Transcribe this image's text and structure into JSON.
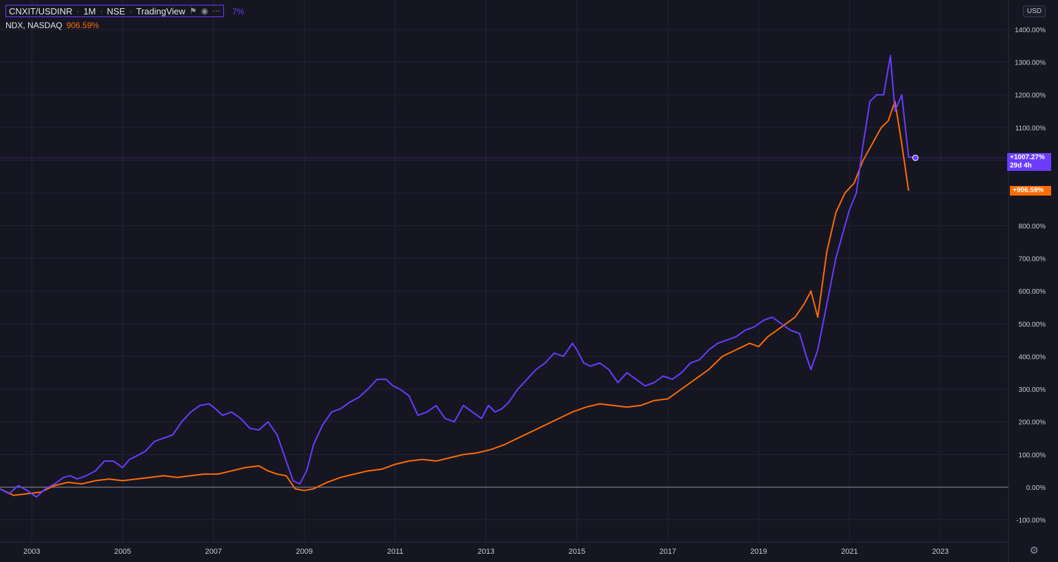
{
  "header": {
    "symbol": "CNXIT/USDINR",
    "interval": "1M",
    "exchange": "NSE",
    "source": "TradingView",
    "flag_icon": "flag-icon",
    "eye_icon": "eye-icon",
    "more_icon": "more-icon",
    "partial_value": "7%"
  },
  "compare": {
    "symbol": "NDX, NASDAQ",
    "value": "906.59%"
  },
  "price_scale": {
    "unit": "USD",
    "cnxit_last": "+1007.27%",
    "cnxit_countdown": "29d 4h",
    "ndx_last": "+906.59%",
    "settings_icon": "gear-icon"
  },
  "colors": {
    "background": "#161623",
    "grid": "#232332",
    "cnxit": "#6b3cff",
    "ndx": "#ff6d00",
    "zero_line": "#9598a1"
  },
  "chart_data": {
    "type": "line",
    "title": "",
    "xlabel": "",
    "ylabel": "",
    "xlim": [
      2002.3,
      2024.5
    ],
    "ylim": [
      -140,
      1480
    ],
    "x_ticks": [
      "2003",
      "2005",
      "2007",
      "2009",
      "2011",
      "2013",
      "2015",
      "2017",
      "2019",
      "2021",
      "2023"
    ],
    "y_ticks": [
      "1400.00%",
      "1300.00%",
      "1200.00%",
      "1100.00%",
      "1000.00%",
      "900.00%",
      "800.00%",
      "700.00%",
      "600.00%",
      "500.00%",
      "400.00%",
      "300.00%",
      "200.00%",
      "100.00%",
      "0.00%",
      "-100.00%"
    ],
    "grid": true,
    "series": [
      {
        "name": "CNXIT/USDINR",
        "x": [
          2002.3,
          2002.5,
          2002.7,
          2002.9,
          2003.1,
          2003.3,
          2003.5,
          2003.7,
          2003.85,
          2004.0,
          2004.2,
          2004.4,
          2004.6,
          2004.8,
          2005.0,
          2005.15,
          2005.3,
          2005.5,
          2005.7,
          2005.9,
          2006.1,
          2006.3,
          2006.5,
          2006.7,
          2006.9,
          2007.0,
          2007.2,
          2007.4,
          2007.6,
          2007.8,
          2008.0,
          2008.2,
          2008.4,
          2008.6,
          2008.75,
          2008.9,
          2009.05,
          2009.2,
          2009.4,
          2009.6,
          2009.8,
          2010.0,
          2010.2,
          2010.4,
          2010.6,
          2010.8,
          2010.95,
          2011.1,
          2011.3,
          2011.5,
          2011.7,
          2011.9,
          2012.1,
          2012.3,
          2012.5,
          2012.7,
          2012.9,
          2013.05,
          2013.2,
          2013.35,
          2013.5,
          2013.7,
          2013.9,
          2014.1,
          2014.3,
          2014.5,
          2014.7,
          2014.9,
          2015.0,
          2015.15,
          2015.3,
          2015.5,
          2015.7,
          2015.9,
          2016.1,
          2016.3,
          2016.5,
          2016.7,
          2016.9,
          2017.1,
          2017.3,
          2017.5,
          2017.7,
          2017.9,
          2018.1,
          2018.3,
          2018.5,
          2018.7,
          2018.9,
          2019.1,
          2019.3,
          2019.5,
          2019.7,
          2019.9,
          2020.05,
          2020.15,
          2020.3,
          2020.5,
          2020.7,
          2020.9,
          2021.0,
          2021.15,
          2021.3,
          2021.45,
          2021.6,
          2021.75,
          2021.9,
          2022.0,
          2022.15,
          2022.3,
          2022.45
        ],
        "values": [
          -5,
          -20,
          5,
          -10,
          -30,
          -5,
          10,
          30,
          35,
          25,
          35,
          50,
          80,
          80,
          60,
          85,
          95,
          110,
          140,
          150,
          160,
          200,
          230,
          250,
          255,
          245,
          220,
          230,
          210,
          180,
          175,
          200,
          160,
          80,
          20,
          10,
          50,
          130,
          190,
          230,
          240,
          260,
          275,
          300,
          330,
          330,
          310,
          300,
          280,
          220,
          230,
          250,
          210,
          200,
          250,
          230,
          210,
          250,
          230,
          240,
          260,
          300,
          330,
          360,
          380,
          410,
          400,
          440,
          420,
          380,
          370,
          380,
          360,
          320,
          350,
          330,
          310,
          320,
          340,
          330,
          350,
          380,
          390,
          420,
          440,
          450,
          460,
          480,
          490,
          510,
          520,
          500,
          480,
          470,
          400,
          360,
          420,
          560,
          700,
          800,
          850,
          900,
          1050,
          1180,
          1200,
          1200,
          1320,
          1150,
          1200,
          1010,
          1007.27
        ]
      },
      {
        "name": "NDX, NASDAQ",
        "x": [
          2002.3,
          2002.6,
          2002.9,
          2003.2,
          2003.5,
          2003.8,
          2004.1,
          2004.4,
          2004.7,
          2005.0,
          2005.3,
          2005.6,
          2005.9,
          2006.2,
          2006.5,
          2006.8,
          2007.1,
          2007.4,
          2007.7,
          2008.0,
          2008.2,
          2008.4,
          2008.6,
          2008.8,
          2009.0,
          2009.2,
          2009.5,
          2009.8,
          2010.1,
          2010.4,
          2010.7,
          2011.0,
          2011.3,
          2011.6,
          2011.9,
          2012.2,
          2012.5,
          2012.8,
          2013.1,
          2013.4,
          2013.7,
          2014.0,
          2014.3,
          2014.6,
          2014.9,
          2015.2,
          2015.5,
          2015.8,
          2016.1,
          2016.4,
          2016.7,
          2017.0,
          2017.3,
          2017.6,
          2017.9,
          2018.2,
          2018.5,
          2018.8,
          2019.0,
          2019.2,
          2019.4,
          2019.6,
          2019.8,
          2020.0,
          2020.15,
          2020.3,
          2020.5,
          2020.7,
          2020.9,
          2021.1,
          2021.3,
          2021.5,
          2021.7,
          2021.85,
          2022.0,
          2022.15,
          2022.3
        ],
        "values": [
          -5,
          -25,
          -20,
          -15,
          5,
          15,
          10,
          20,
          25,
          20,
          25,
          30,
          35,
          30,
          35,
          40,
          40,
          50,
          60,
          65,
          50,
          40,
          35,
          -5,
          -10,
          -5,
          15,
          30,
          40,
          50,
          55,
          70,
          80,
          85,
          80,
          90,
          100,
          105,
          115,
          130,
          150,
          170,
          190,
          210,
          230,
          245,
          255,
          250,
          245,
          250,
          265,
          270,
          300,
          330,
          360,
          400,
          420,
          440,
          430,
          460,
          480,
          500,
          520,
          560,
          600,
          520,
          720,
          840,
          900,
          930,
          1000,
          1050,
          1100,
          1120,
          1180,
          1050,
          906.59
        ]
      }
    ]
  }
}
